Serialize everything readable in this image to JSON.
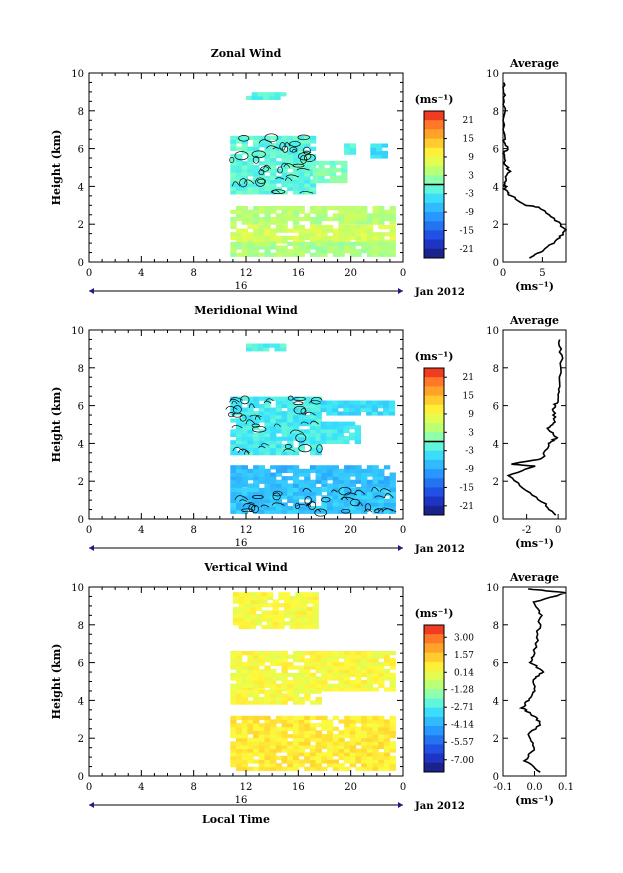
{
  "chart_data": [
    {
      "type": "heatmap",
      "title": "Zonal Wind",
      "ylabel": "Height (km)",
      "xlim": [
        0,
        24
      ],
      "ylim": [
        0,
        10
      ],
      "x_ticks": [
        "0",
        "4",
        "8",
        "12",
        "16",
        "20",
        "0"
      ],
      "y_ticks": [
        "0",
        "2",
        "4",
        "6",
        "8",
        "10"
      ],
      "date_day": "16",
      "date_label": "Jan 2012",
      "colorbar": {
        "unit": "(ms⁻¹)",
        "range": [
          -24,
          24
        ],
        "ticks": [
          "21",
          "15",
          "9",
          "3",
          "-3",
          "-9",
          "-15",
          "-21"
        ],
        "tick_values": [
          21,
          15,
          9,
          3,
          -3,
          -9,
          -15,
          -21
        ]
      },
      "regions": [
        {
          "x": [
            10.8,
            17.1
          ],
          "y": [
            3.6,
            6.6
          ],
          "value": -1.5,
          "contours": true
        },
        {
          "x": [
            17.1,
            19.6
          ],
          "y": [
            4.2,
            5.2
          ],
          "value": 0.8
        },
        {
          "x": [
            19.5,
            20.0
          ],
          "y": [
            5.7,
            6.2
          ],
          "value": -2.0
        },
        {
          "x": [
            21.5,
            22.5
          ],
          "y": [
            5.5,
            6.1
          ],
          "value": -4.0
        },
        {
          "x": [
            10.8,
            23.0
          ],
          "y": [
            2.0,
            2.8
          ],
          "value": 4.5
        },
        {
          "x": [
            10.8,
            23.0
          ],
          "y": [
            1.0,
            1.8
          ],
          "value": 6.5
        },
        {
          "x": [
            10.8,
            23.0
          ],
          "y": [
            0.3,
            1.0
          ],
          "value": 3.5
        },
        {
          "x": [
            12.0,
            15.0
          ],
          "y": [
            8.6,
            8.9
          ],
          "value": -2.0
        }
      ],
      "profile": {
        "title": "Average",
        "xlabel": "(ms⁻¹)",
        "xlim": [
          0,
          8
        ],
        "x_ticks": [
          "0",
          "5"
        ],
        "tick_values": [
          0,
          5
        ],
        "y_ticks": [
          "0",
          "2",
          "4",
          "6",
          "8",
          "10"
        ],
        "ylim": [
          0,
          10
        ],
        "points": [
          [
            3.5,
            0.2
          ],
          [
            5.0,
            0.6
          ],
          [
            7.0,
            1.2
          ],
          [
            8.0,
            1.7
          ],
          [
            6.5,
            2.3
          ],
          [
            4.5,
            2.9
          ],
          [
            3.0,
            3.0
          ],
          [
            1.0,
            3.5
          ],
          [
            0.3,
            3.8
          ],
          [
            0.1,
            4.2
          ],
          [
            0.8,
            4.8
          ],
          [
            0.2,
            5.2
          ],
          [
            0.1,
            5.7
          ],
          [
            0.5,
            6.0
          ],
          [
            0.1,
            6.5
          ],
          [
            0.1,
            8.0
          ],
          [
            0.2,
            8.7
          ],
          [
            0.1,
            9.5
          ]
        ]
      }
    },
    {
      "type": "heatmap",
      "title": "Meridional Wind",
      "ylabel": "Height (km)",
      "xlim": [
        0,
        24
      ],
      "ylim": [
        0,
        10
      ],
      "x_ticks": [
        "0",
        "4",
        "8",
        "12",
        "16",
        "20",
        "0"
      ],
      "y_ticks": [
        "0",
        "2",
        "4",
        "6",
        "8",
        "10"
      ],
      "date_day": "16",
      "date_label": "Jan 2012",
      "colorbar": {
        "unit": "(ms⁻¹)",
        "range": [
          -24,
          24
        ],
        "ticks": [
          "21",
          "15",
          "9",
          "3",
          "-3",
          "-9",
          "-15",
          "-21"
        ],
        "tick_values": [
          21,
          15,
          9,
          3,
          -3,
          -9,
          -15,
          -21
        ]
      },
      "regions": [
        {
          "x": [
            10.8,
            17.7
          ],
          "y": [
            3.4,
            6.4
          ],
          "value": -3.0,
          "contours": true
        },
        {
          "x": [
            17.7,
            23.0
          ],
          "y": [
            5.5,
            6.2
          ],
          "value": -4.5
        },
        {
          "x": [
            17.7,
            20.5
          ],
          "y": [
            4.0,
            5.0
          ],
          "value": -3.5
        },
        {
          "x": [
            10.8,
            23.0
          ],
          "y": [
            1.5,
            2.8
          ],
          "value": -7.5
        },
        {
          "x": [
            10.8,
            23.0
          ],
          "y": [
            0.3,
            1.5
          ],
          "value": -6.5,
          "contours": true
        },
        {
          "x": [
            12.0,
            15.0
          ],
          "y": [
            8.9,
            9.2
          ],
          "value": -2.0
        }
      ],
      "profile": {
        "title": "Average",
        "xlabel": "(ms⁻¹)",
        "xlim": [
          -3.5,
          0.5
        ],
        "x_ticks": [
          "-2",
          "0"
        ],
        "tick_values": [
          -2,
          0
        ],
        "y_ticks": [
          "0",
          "2",
          "4",
          "6",
          "8",
          "10"
        ],
        "ylim": [
          0,
          10
        ],
        "points": [
          [
            -0.2,
            0.2
          ],
          [
            -0.8,
            0.8
          ],
          [
            -2.0,
            1.5
          ],
          [
            -3.2,
            2.3
          ],
          [
            -1.5,
            2.8
          ],
          [
            -3.0,
            2.9
          ],
          [
            -1.0,
            3.2
          ],
          [
            -0.6,
            4.0
          ],
          [
            -0.1,
            4.3
          ],
          [
            -0.6,
            4.8
          ],
          [
            -0.2,
            5.2
          ],
          [
            -0.3,
            5.8
          ],
          [
            -0.1,
            6.2
          ],
          [
            0.1,
            7.0
          ],
          [
            0.2,
            8.5
          ],
          [
            0.1,
            9.5
          ]
        ]
      }
    },
    {
      "type": "heatmap",
      "title": "Vertical Wind",
      "ylabel": "Height (km)",
      "xlabel": "Local Time",
      "xlim": [
        0,
        24
      ],
      "ylim": [
        0,
        10
      ],
      "x_ticks": [
        "0",
        "4",
        "8",
        "12",
        "16",
        "20",
        "0"
      ],
      "y_ticks": [
        "0",
        "2",
        "4",
        "6",
        "8",
        "10"
      ],
      "date_day": "16",
      "date_label": "Jan 2012",
      "colorbar": {
        "unit": "(ms⁻¹)",
        "range": [
          -8,
          4
        ],
        "ticks": [
          "3.00",
          "1.57",
          "0.14",
          "-1.28",
          "-2.71",
          "-4.14",
          "-5.57",
          "-7.00"
        ],
        "tick_values": [
          3.0,
          1.57,
          0.14,
          -1.28,
          -2.71,
          -4.14,
          -5.57,
          -7.0
        ]
      },
      "regions": [
        {
          "x": [
            10.8,
            23.0
          ],
          "y": [
            4.5,
            6.5
          ],
          "value": 0.3
        },
        {
          "x": [
            10.8,
            17.5
          ],
          "y": [
            3.8,
            4.5
          ],
          "value": 0.3
        },
        {
          "x": [
            11.0,
            17.5
          ],
          "y": [
            7.8,
            9.6
          ],
          "value": 0.3
        },
        {
          "x": [
            10.8,
            23.0
          ],
          "y": [
            0.3,
            3.0
          ],
          "value": 0.7
        }
      ],
      "profile": {
        "title": "Average",
        "xlabel": "(ms⁻¹)",
        "xlim": [
          -0.1,
          0.1
        ],
        "x_ticks": [
          "-0.1",
          "0.0",
          "0.1"
        ],
        "tick_values": [
          -0.1,
          0.0,
          0.1
        ],
        "y_ticks": [
          "0",
          "2",
          "4",
          "6",
          "8",
          "10"
        ],
        "ylim": [
          0,
          10
        ],
        "points": [
          [
            0.02,
            0.2
          ],
          [
            -0.03,
            0.8
          ],
          [
            0.0,
            1.5
          ],
          [
            -0.02,
            2.2
          ],
          [
            0.02,
            2.8
          ],
          [
            -0.01,
            3.3
          ],
          [
            -0.04,
            3.6
          ],
          [
            -0.02,
            4.0
          ],
          [
            0.0,
            4.5
          ],
          [
            0.0,
            5.2
          ],
          [
            0.03,
            5.5
          ],
          [
            -0.01,
            6.0
          ],
          [
            0.0,
            6.5
          ],
          [
            0.01,
            7.5
          ],
          [
            0.02,
            8.5
          ],
          [
            0.0,
            9.2
          ],
          [
            0.1,
            9.7
          ],
          [
            -0.02,
            9.9
          ]
        ]
      }
    }
  ]
}
